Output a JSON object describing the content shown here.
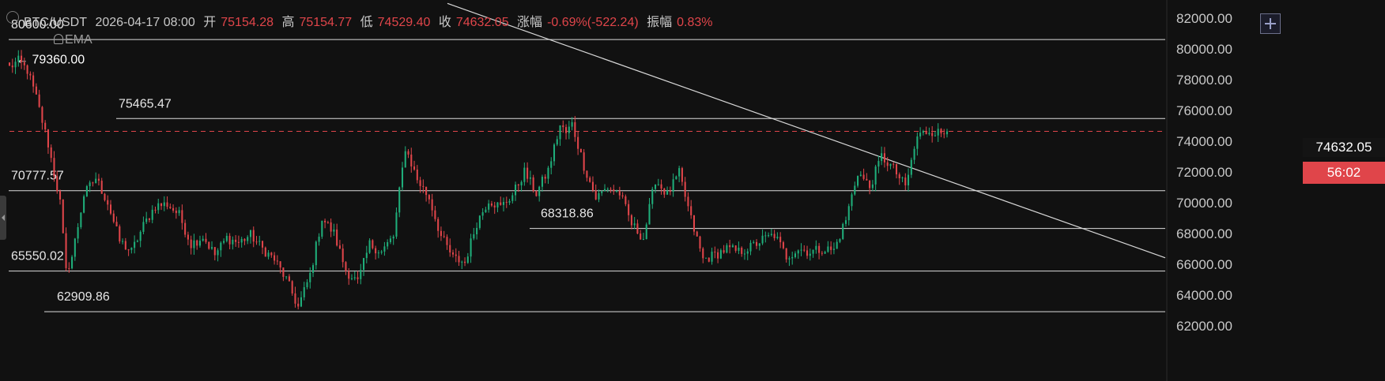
{
  "header": {
    "symbol": "BTC/USDT",
    "datetime": "2026-04-17 08:00",
    "open_label": "开",
    "open": "75154.28",
    "high_label": "高",
    "high": "75154.77",
    "low_label": "低",
    "low": "74529.40",
    "close_label": "收",
    "close": "74632.05",
    "change_label": "涨幅",
    "change": "-0.69%(-522.24)",
    "amp_label": "振幅",
    "amp": "0.83%"
  },
  "indicator_label": "EMA",
  "current_price": "74632.05",
  "countdown": "56:02",
  "colors": {
    "up": "#1fae7a",
    "down": "#e0454a",
    "background": "#111111",
    "line": "#d8d8d8",
    "axis_text": "#c8c8c8"
  },
  "chart_data": {
    "type": "candlestick",
    "title": "",
    "xlabel": "",
    "ylabel": "",
    "ylim": [
      61000,
      82600
    ],
    "y_ticks": [
      "82000.00",
      "80000.00",
      "78000.00",
      "76000.00",
      "74000.00",
      "72000.00",
      "70000.00",
      "68000.00",
      "66000.00",
      "64000.00",
      "62000.00"
    ],
    "horizontal_levels": [
      {
        "value": 80600.0,
        "label": "80600.00"
      },
      {
        "value": 75465.47,
        "label": "75465.47"
      },
      {
        "value": 70777.57,
        "label": "70777.57"
      },
      {
        "value": 68318.86,
        "label": "68318.86"
      },
      {
        "value": 65550.02,
        "label": "65550.02"
      },
      {
        "value": 62909.86,
        "label": "62909.86"
      }
    ],
    "high_marker": {
      "value": 79360.0,
      "label": "← 79360.00"
    },
    "current_price_line": 74632.05,
    "trendline": [
      {
        "bar": 150,
        "price": 82750
      },
      {
        "bar": 390,
        "price": 66300
      }
    ],
    "close_anchors": [
      [
        0,
        78800
      ],
      [
        3,
        79200
      ],
      [
        6,
        78600
      ],
      [
        9,
        76800
      ],
      [
        13,
        73800
      ],
      [
        17,
        70000
      ],
      [
        19,
        65500
      ],
      [
        21,
        66500
      ],
      [
        25,
        70500
      ],
      [
        29,
        71600
      ],
      [
        33,
        70000
      ],
      [
        37,
        67500
      ],
      [
        41,
        66800
      ],
      [
        45,
        68500
      ],
      [
        49,
        69800
      ],
      [
        53,
        69900
      ],
      [
        57,
        69200
      ],
      [
        61,
        67300
      ],
      [
        65,
        67800
      ],
      [
        69,
        66600
      ],
      [
        73,
        67700
      ],
      [
        77,
        67400
      ],
      [
        81,
        67900
      ],
      [
        85,
        67000
      ],
      [
        89,
        66300
      ],
      [
        93,
        65000
      ],
      [
        97,
        63200
      ],
      [
        101,
        65300
      ],
      [
        105,
        69000
      ],
      [
        109,
        68000
      ],
      [
        113,
        65600
      ],
      [
        117,
        64800
      ],
      [
        121,
        67300
      ],
      [
        125,
        66800
      ],
      [
        129,
        67800
      ],
      [
        133,
        73600
      ],
      [
        137,
        71500
      ],
      [
        141,
        70300
      ],
      [
        145,
        67800
      ],
      [
        149,
        66400
      ],
      [
        153,
        66100
      ],
      [
        157,
        68700
      ],
      [
        161,
        70200
      ],
      [
        165,
        69700
      ],
      [
        169,
        70500
      ],
      [
        173,
        72000
      ],
      [
        177,
        70600
      ],
      [
        181,
        72100
      ],
      [
        185,
        75000
      ],
      [
        187,
        74500
      ],
      [
        189,
        75100
      ],
      [
        193,
        72400
      ],
      [
        197,
        70300
      ],
      [
        201,
        71000
      ],
      [
        205,
        70600
      ],
      [
        209,
        68600
      ],
      [
        213,
        67700
      ],
      [
        217,
        71500
      ],
      [
        221,
        70500
      ],
      [
        225,
        71900
      ],
      [
        229,
        68900
      ],
      [
        233,
        66300
      ],
      [
        237,
        66600
      ],
      [
        241,
        67000
      ],
      [
        245,
        66800
      ],
      [
        249,
        67100
      ],
      [
        253,
        67600
      ],
      [
        257,
        67900
      ],
      [
        261,
        66500
      ],
      [
        265,
        67000
      ],
      [
        269,
        66800
      ],
      [
        273,
        67000
      ],
      [
        277,
        66900
      ],
      [
        281,
        68900
      ],
      [
        285,
        72000
      ],
      [
        289,
        71000
      ],
      [
        293,
        73000
      ],
      [
        297,
        72200
      ],
      [
        301,
        71000
      ],
      [
        305,
        74300
      ],
      [
        309,
        74700
      ],
      [
        313,
        74500
      ],
      [
        315,
        74632
      ]
    ]
  }
}
